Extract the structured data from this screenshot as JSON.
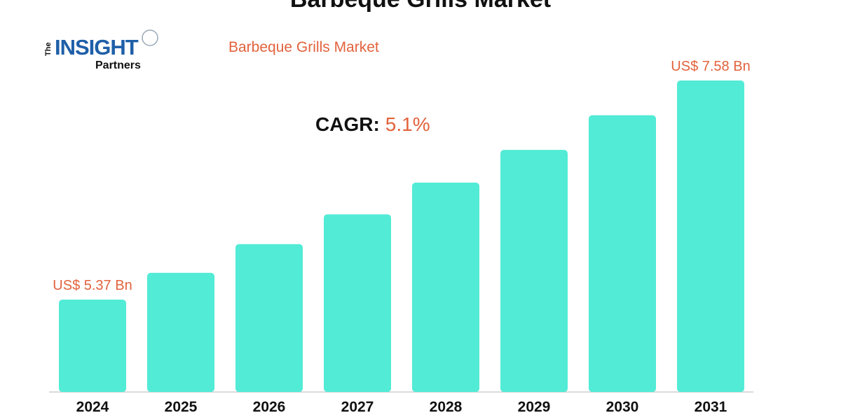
{
  "page": {
    "title": "Barbeque Grills Market"
  },
  "logo": {
    "the": "The",
    "insight": "INSIGHT",
    "partners": "Partners"
  },
  "cagr": {
    "label": "CAGR:",
    "value": "5.1%"
  },
  "colors": {
    "bar": "#52ebd6",
    "accent": "#e2623c",
    "logo_blue": "#1f5fa8",
    "text": "#111111"
  },
  "chart_data": {
    "type": "bar",
    "title": "Barbeque Grills Market",
    "xlabel": "",
    "ylabel": "",
    "categories": [
      "2024",
      "2025",
      "2026",
      "2027",
      "2028",
      "2029",
      "2030",
      "2031"
    ],
    "values": [
      5.37,
      5.64,
      5.93,
      6.23,
      6.55,
      6.88,
      7.23,
      7.58
    ],
    "ylim": [
      0,
      8
    ],
    "grid": false,
    "data_labels": [
      {
        "category": "2024",
        "text": "US$ 5.37 Bn"
      },
      {
        "category": "2031",
        "text": "US$ 7.58 Bn"
      }
    ]
  }
}
